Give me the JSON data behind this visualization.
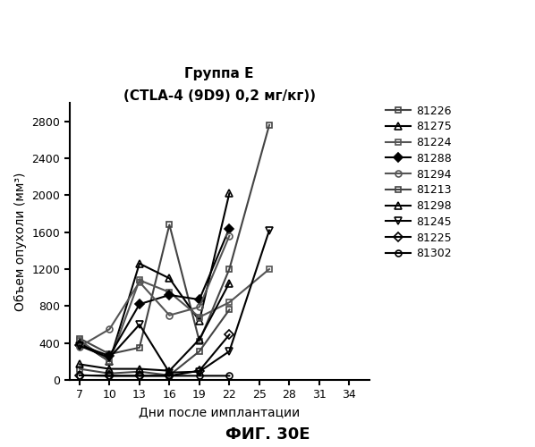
{
  "title_line1": "Группа Е",
  "title_line2": "(CTLA-4 (9D9) 0,2 мг/кг))",
  "xlabel": "Дни после имплантации",
  "ylabel": "Объем опухоли (мм³)",
  "figcaption": "ФИГ. 30Е",
  "xlim": [
    6,
    36
  ],
  "ylim": [
    0,
    3000
  ],
  "xticks": [
    7,
    10,
    13,
    16,
    19,
    22,
    25,
    28,
    31,
    34
  ],
  "yticks": [
    0,
    400,
    800,
    1200,
    1600,
    2000,
    2400,
    2800
  ],
  "series": [
    {
      "label": "81226",
      "color": "#444444",
      "marker": "s",
      "linestyle": "-",
      "markersize": 5,
      "fillstyle": "none",
      "markerfacecolor": "none",
      "data": [
        [
          7,
          450
        ],
        [
          10,
          280
        ],
        [
          13,
          350
        ],
        [
          16,
          1680
        ],
        [
          19,
          420
        ],
        [
          22,
          1200
        ],
        [
          26,
          2760
        ]
      ]
    },
    {
      "label": "81275",
      "color": "#000000",
      "marker": "^",
      "linestyle": "-",
      "markersize": 6,
      "fillstyle": "none",
      "data": [
        [
          7,
          410
        ],
        [
          10,
          200
        ],
        [
          13,
          1260
        ],
        [
          16,
          1100
        ],
        [
          19,
          640
        ],
        [
          22,
          2020
        ]
      ]
    },
    {
      "label": "81224",
      "color": "#555555",
      "marker": "s",
      "linestyle": "-",
      "markersize": 5,
      "fillstyle": "none",
      "data": [
        [
          7,
          430
        ],
        [
          10,
          200
        ],
        [
          13,
          1080
        ],
        [
          16,
          950
        ],
        [
          19,
          680
        ],
        [
          22,
          840
        ],
        [
          26,
          1200
        ]
      ]
    },
    {
      "label": "81288",
      "color": "#000000",
      "marker": "D",
      "linestyle": "-",
      "markersize": 5,
      "fillstyle": "full",
      "data": [
        [
          7,
          380
        ],
        [
          10,
          260
        ],
        [
          13,
          820
        ],
        [
          16,
          920
        ],
        [
          19,
          870
        ],
        [
          22,
          1640
        ]
      ]
    },
    {
      "label": "81294",
      "color": "#555555",
      "marker": "o",
      "linestyle": "-",
      "markersize": 5,
      "fillstyle": "none",
      "data": [
        [
          7,
          360
        ],
        [
          10,
          550
        ],
        [
          13,
          1060
        ],
        [
          16,
          700
        ],
        [
          19,
          790
        ],
        [
          22,
          1560
        ]
      ]
    },
    {
      "label": "81213",
      "color": "#444444",
      "marker": "s",
      "linestyle": "-",
      "markersize": 5,
      "fillstyle": "none",
      "data": [
        [
          7,
          120
        ],
        [
          10,
          70
        ],
        [
          13,
          90
        ],
        [
          16,
          50
        ],
        [
          19,
          310
        ],
        [
          22,
          760
        ]
      ]
    },
    {
      "label": "81298",
      "color": "#000000",
      "marker": "^",
      "linestyle": "-",
      "markersize": 6,
      "fillstyle": "none",
      "data": [
        [
          7,
          170
        ],
        [
          10,
          120
        ],
        [
          13,
          120
        ],
        [
          16,
          100
        ],
        [
          19,
          440
        ],
        [
          22,
          1050
        ]
      ]
    },
    {
      "label": "81245",
      "color": "#000000",
      "marker": "v",
      "linestyle": "-",
      "markersize": 6,
      "fillstyle": "none",
      "data": [
        [
          7,
          370
        ],
        [
          10,
          240
        ],
        [
          13,
          600
        ],
        [
          16,
          80
        ],
        [
          19,
          90
        ],
        [
          22,
          310
        ],
        [
          26,
          1620
        ]
      ]
    },
    {
      "label": "81225",
      "color": "#000000",
      "marker": "D",
      "linestyle": "-",
      "markersize": 5,
      "fillstyle": "none",
      "data": [
        [
          7,
          50
        ],
        [
          10,
          45
        ],
        [
          13,
          45
        ],
        [
          16,
          45
        ],
        [
          19,
          100
        ],
        [
          22,
          490
        ]
      ]
    },
    {
      "label": "81302",
      "color": "#000000",
      "marker": "o",
      "linestyle": "-",
      "markersize": 5,
      "fillstyle": "none",
      "data": [
        [
          7,
          50
        ],
        [
          10,
          45
        ],
        [
          13,
          45
        ],
        [
          16,
          45
        ],
        [
          19,
          45
        ],
        [
          22,
          45
        ]
      ]
    }
  ]
}
